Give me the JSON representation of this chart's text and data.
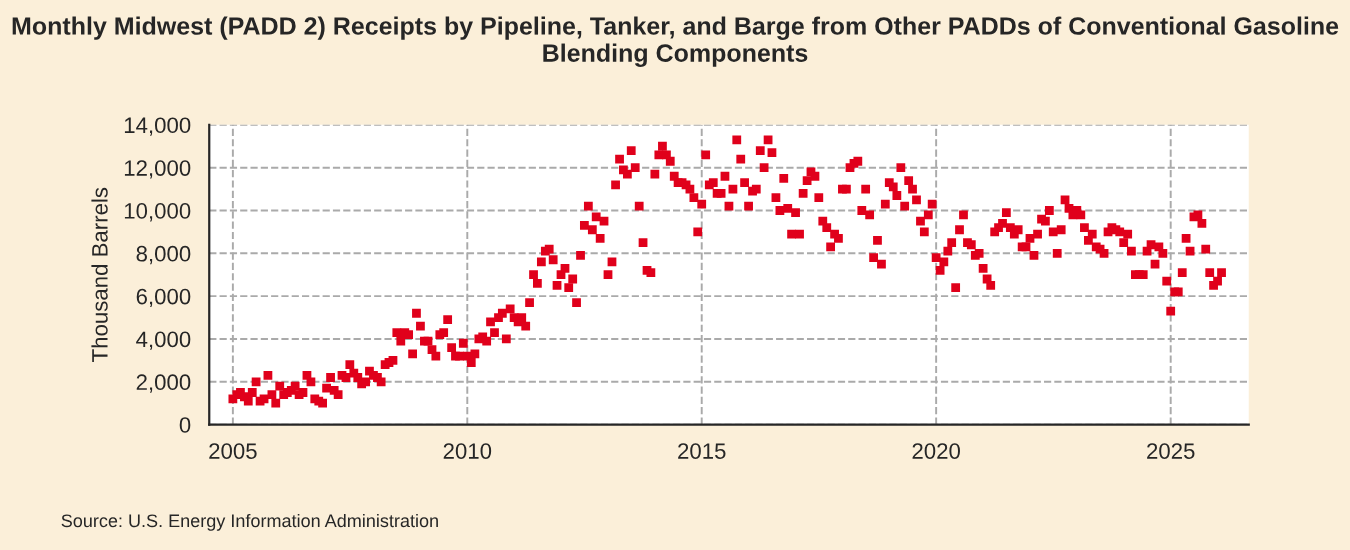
{
  "chart_data": {
    "type": "scatter",
    "title": "Monthly Midwest (PADD 2) Receipts by Pipeline, Tanker, and Barge from Other PADDs of Conventional Gasoline Blending Components",
    "ylabel": "Thousand Barrels",
    "annotations": [
      "Source: U.S. Energy Information Administration"
    ],
    "series": [
      {
        "color": "#e0001b",
        "x": [
          "2005-01",
          "2005-02",
          "2005-03",
          "2005-04",
          "2005-05",
          "2005-06",
          "2005-07",
          "2005-08",
          "2005-09",
          "2005-10",
          "2005-11",
          "2005-12",
          "2006-01",
          "2006-02",
          "2006-03",
          "2006-04",
          "2006-05",
          "2006-06",
          "2006-07",
          "2006-08",
          "2006-09",
          "2006-10",
          "2006-11",
          "2006-12",
          "2007-01",
          "2007-02",
          "2007-03",
          "2007-04",
          "2007-05",
          "2007-06",
          "2007-07",
          "2007-08",
          "2007-09",
          "2007-10",
          "2007-11",
          "2007-12",
          "2008-01",
          "2008-02",
          "2008-03",
          "2008-04",
          "2008-05",
          "2008-06",
          "2008-07",
          "2008-08",
          "2008-09",
          "2008-10",
          "2008-11",
          "2008-12",
          "2009-01",
          "2009-02",
          "2009-03",
          "2009-04",
          "2009-05",
          "2009-06",
          "2009-07",
          "2009-08",
          "2009-09",
          "2009-10",
          "2009-11",
          "2009-12",
          "2010-01",
          "2010-02",
          "2010-03",
          "2010-04",
          "2010-05",
          "2010-06",
          "2010-07",
          "2010-08",
          "2010-09",
          "2010-10",
          "2010-11",
          "2010-12",
          "2011-01",
          "2011-02",
          "2011-03",
          "2011-04",
          "2011-05",
          "2011-06",
          "2011-07",
          "2011-08",
          "2011-09",
          "2011-10",
          "2011-11",
          "2011-12",
          "2012-01",
          "2012-02",
          "2012-03",
          "2012-04",
          "2012-05",
          "2012-06",
          "2012-07",
          "2012-08",
          "2012-09",
          "2012-10",
          "2012-11",
          "2012-12",
          "2013-01",
          "2013-02",
          "2013-03",
          "2013-04",
          "2013-05",
          "2013-06",
          "2013-07",
          "2013-08",
          "2013-09",
          "2013-10",
          "2013-11",
          "2013-12",
          "2014-01",
          "2014-02",
          "2014-03",
          "2014-04",
          "2014-05",
          "2014-06",
          "2014-07",
          "2014-08",
          "2014-09",
          "2014-10",
          "2014-11",
          "2014-12",
          "2015-01",
          "2015-02",
          "2015-03",
          "2015-04",
          "2015-05",
          "2015-06",
          "2015-07",
          "2015-08",
          "2015-09",
          "2015-10",
          "2015-11",
          "2015-12",
          "2016-01",
          "2016-02",
          "2016-03",
          "2016-04",
          "2016-05",
          "2016-06",
          "2016-07",
          "2016-08",
          "2016-09",
          "2016-10",
          "2016-11",
          "2016-12",
          "2017-01",
          "2017-02",
          "2017-03",
          "2017-04",
          "2017-05",
          "2017-06",
          "2017-07",
          "2017-08",
          "2017-09",
          "2017-10",
          "2017-11",
          "2017-12",
          "2018-01",
          "2018-02",
          "2018-03",
          "2018-04",
          "2018-05",
          "2018-06",
          "2018-07",
          "2018-08",
          "2018-09",
          "2018-10",
          "2018-11",
          "2018-12",
          "2019-01",
          "2019-02",
          "2019-03",
          "2019-04",
          "2019-05",
          "2019-06",
          "2019-07",
          "2019-08",
          "2019-09",
          "2019-10",
          "2019-11",
          "2019-12",
          "2020-01",
          "2020-02",
          "2020-03",
          "2020-04",
          "2020-05",
          "2020-06",
          "2020-07",
          "2020-08",
          "2020-09",
          "2020-10",
          "2020-11",
          "2020-12",
          "2021-01",
          "2021-02",
          "2021-03",
          "2021-04",
          "2021-05",
          "2021-06",
          "2021-07",
          "2021-08",
          "2021-09",
          "2021-10",
          "2021-11",
          "2021-12",
          "2022-01",
          "2022-02",
          "2022-03",
          "2022-04",
          "2022-05",
          "2022-06",
          "2022-07",
          "2022-08",
          "2022-09",
          "2022-10",
          "2022-11",
          "2022-12",
          "2023-01",
          "2023-02",
          "2023-03",
          "2023-04",
          "2023-05",
          "2023-06",
          "2023-07",
          "2023-08",
          "2023-09",
          "2023-10",
          "2023-11",
          "2023-12",
          "2024-01",
          "2024-02",
          "2024-03",
          "2024-04",
          "2024-05",
          "2024-06",
          "2024-07",
          "2024-08",
          "2024-09",
          "2024-10",
          "2024-11",
          "2024-12",
          "2025-01",
          "2025-02",
          "2025-03",
          "2025-04",
          "2025-05",
          "2025-06",
          "2025-07",
          "2025-08",
          "2025-09",
          "2025-10",
          "2025-11",
          "2025-12",
          "2026-01",
          "2026-02"
        ],
        "values": [
          1200,
          1400,
          1500,
          1300,
          1100,
          1500,
          2000,
          1100,
          1200,
          2300,
          1400,
          1000,
          1800,
          1400,
          1500,
          1600,
          1800,
          1400,
          1500,
          2300,
          2000,
          1200,
          1100,
          1000,
          1700,
          2200,
          1600,
          1400,
          2300,
          2200,
          2800,
          2400,
          2200,
          1900,
          2000,
          2500,
          2300,
          2200,
          2000,
          2800,
          2900,
          3000,
          4300,
          3900,
          4300,
          4200,
          3300,
          5200,
          4600,
          3900,
          3900,
          3500,
          3200,
          4200,
          4300,
          4900,
          3600,
          3200,
          3200,
          3800,
          3200,
          2900,
          3300,
          4000,
          4100,
          3900,
          4800,
          4300,
          5000,
          5200,
          4000,
          5400,
          5000,
          4800,
          5000,
          4600,
          5700,
          7000,
          6600,
          7600,
          8100,
          8200,
          7700,
          6500,
          7000,
          7300,
          6400,
          6800,
          5700,
          7900,
          9300,
          10200,
          9100,
          9700,
          8700,
          9500,
          7000,
          7600,
          11200,
          12400,
          11900,
          11700,
          12800,
          12000,
          10200,
          8500,
          7200,
          7100,
          11700,
          12600,
          13000,
          12600,
          12300,
          11600,
          11300,
          11300,
          11200,
          11000,
          10600,
          9000,
          10300,
          12600,
          11200,
          11300,
          10800,
          10800,
          11600,
          10200,
          11000,
          13300,
          12400,
          11300,
          10200,
          10900,
          11000,
          12800,
          12000,
          13300,
          12700,
          10600,
          10000,
          11500,
          10100,
          8900,
          9900,
          8900,
          10800,
          11400,
          11800,
          11600,
          10600,
          9500,
          9200,
          8300,
          8900,
          8700,
          11000,
          11000,
          12000,
          12200,
          12300,
          10000,
          11000,
          9800,
          7800,
          8600,
          7500,
          10300,
          11300,
          11100,
          10700,
          12000,
          10200,
          11400,
          11000,
          10500,
          9500,
          9000,
          9800,
          10300,
          7800,
          7200,
          7600,
          8100,
          8500,
          6400,
          9100,
          9800,
          8500,
          8400,
          7900,
          8000,
          7300,
          6800,
          6500,
          9000,
          9200,
          9400,
          9900,
          9200,
          8900,
          9100,
          8300,
          8300,
          8700,
          7900,
          8900,
          9600,
          9500,
          10000,
          9000,
          8000,
          9100,
          10500,
          10100,
          9800,
          10000,
          9800,
          9200,
          8600,
          8900,
          8300,
          8200,
          8000,
          9000,
          9200,
          9100,
          9000,
          8500,
          8900,
          8100,
          7000,
          7000,
          7000,
          8100,
          8400,
          7500,
          8300,
          8000,
          6700,
          5300,
          6200,
          6200,
          7100,
          8700,
          8100,
          9700,
          9800,
          9400,
          8200,
          7100,
          6500,
          6700,
          7100
        ]
      }
    ],
    "xlim": [
      "2004-07",
      "2026-09"
    ],
    "xticks": [
      {
        "value": "2005",
        "label": "2005"
      },
      {
        "value": "2010",
        "label": "2010"
      },
      {
        "value": "2015",
        "label": "2015"
      },
      {
        "value": "2020",
        "label": "2020"
      },
      {
        "value": "2025",
        "label": "2025"
      }
    ],
    "ylim": [
      0,
      14000
    ],
    "yticks": [
      {
        "value": 0,
        "label": "0"
      },
      {
        "value": 2000,
        "label": "2,000"
      },
      {
        "value": 4000,
        "label": "4,000"
      },
      {
        "value": 6000,
        "label": "6,000"
      },
      {
        "value": 8000,
        "label": "8,000"
      },
      {
        "value": 10000,
        "label": "10,000"
      },
      {
        "value": 12000,
        "label": "12,000"
      },
      {
        "value": 14000,
        "label": "14,000"
      }
    ],
    "grid": true,
    "marker": "square"
  }
}
